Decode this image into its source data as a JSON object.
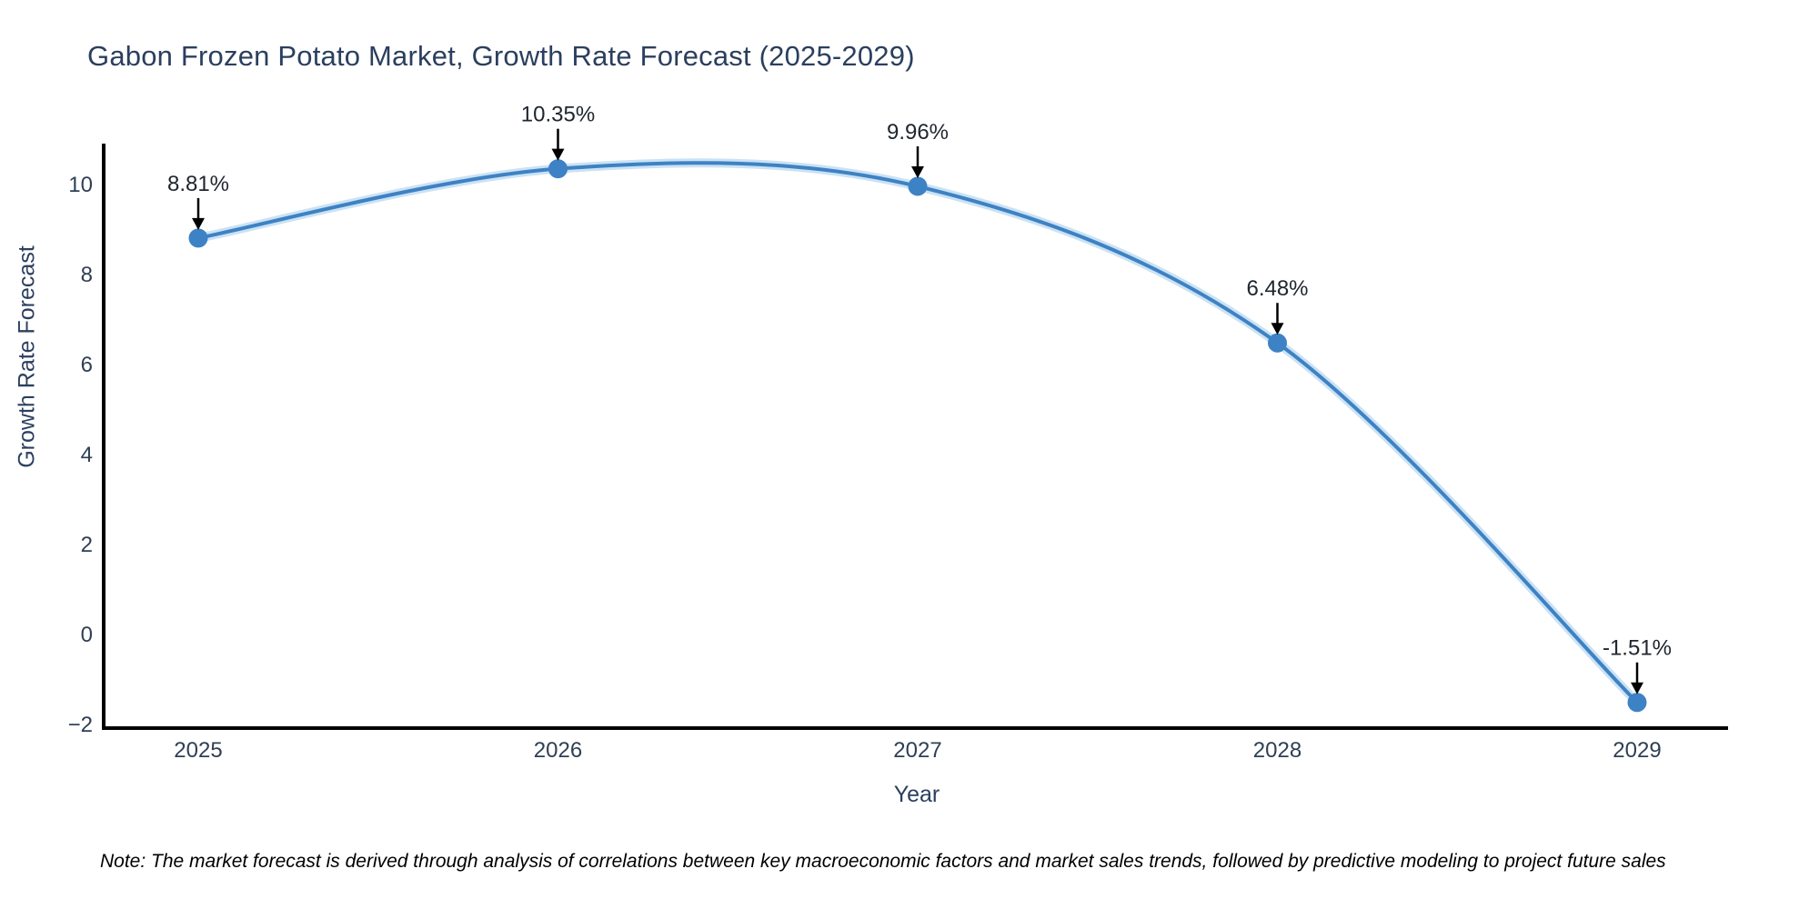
{
  "chart_data": {
    "type": "line",
    "title": "Gabon Frozen Potato Market, Growth Rate Forecast (2025-2029)",
    "xlabel": "Year",
    "ylabel": "Growth Rate Forecast",
    "x": [
      2025,
      2026,
      2027,
      2028,
      2029
    ],
    "values": [
      8.81,
      10.35,
      9.96,
      6.48,
      -1.51
    ],
    "point_labels": [
      "8.81%",
      "10.35%",
      "9.96%",
      "6.48%",
      "-1.51%"
    ],
    "xtick_labels": [
      "2025",
      "2026",
      "2027",
      "2028",
      "2029"
    ],
    "yticks": [
      {
        "label": "10",
        "value": 10
      },
      {
        "label": "8",
        "value": 8
      },
      {
        "label": "6",
        "value": 6
      },
      {
        "label": "4",
        "value": 4
      },
      {
        "label": "2",
        "value": 2
      },
      {
        "label": "0",
        "value": 0
      },
      {
        "label": "−2",
        "value": -2
      }
    ],
    "ylim": [
      -2.1,
      10.9
    ],
    "grid": false,
    "legend": false,
    "line_color": "#3d82c4",
    "marker_color": "#3d82c4",
    "halo_color": "#a9cfec",
    "axis_color": "#000000",
    "text_color": "#2f3f55",
    "annotation_color": "#20262e",
    "annotation_arrow_color": "#000000"
  },
  "note": "Note: The market forecast is derived through analysis of correlations between key macroeconomic factors and market sales trends, followed by predictive modeling to project future sales"
}
